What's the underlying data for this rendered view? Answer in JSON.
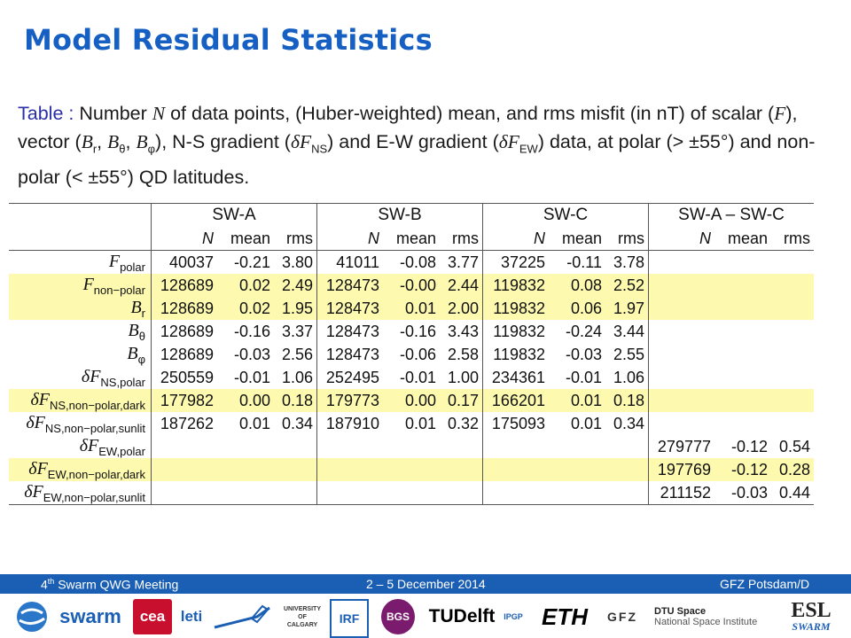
{
  "title": "Model Residual Statistics",
  "caption": {
    "lead": "Table :",
    "t1": " Number ",
    "N": "N",
    "t2": " of data points, (Huber-weighted) mean, and rms misfit (in nT) of scalar (",
    "F": "F",
    "t3": "), vector (",
    "Br": "B",
    "Br_sub": "r",
    "Bt": "B",
    "Bt_sub": "θ",
    "Bp": "B",
    "Bp_sub": "φ",
    "t4": "), N-S gradient (",
    "dFNS": "δF",
    "dFNS_sub": "NS",
    "t5": ") and E-W gradient (",
    "dFEW": "δF",
    "dFEW_sub": "EW",
    "t6": ") data, at polar (> ±55°) and non-polar (< ±55°) QD latitudes."
  },
  "table": {
    "groups": [
      "SW-A",
      "SW-B",
      "SW-C",
      "SW-A – SW-C"
    ],
    "subheaders": [
      "N",
      "mean",
      "rms"
    ],
    "rows": [
      {
        "label": "F",
        "sub": "polar",
        "hl": false,
        "cells": [
          [
            "40037",
            "-0.21",
            "3.80"
          ],
          [
            "41011",
            "-0.08",
            "3.77"
          ],
          [
            "37225",
            "-0.11",
            "3.78"
          ],
          [
            "",
            "",
            ""
          ]
        ]
      },
      {
        "label": "F",
        "sub": "non−polar",
        "hl": true,
        "cells": [
          [
            "128689",
            "0.02",
            "2.49"
          ],
          [
            "128473",
            "-0.00",
            "2.44"
          ],
          [
            "119832",
            "0.08",
            "2.52"
          ],
          [
            "",
            "",
            ""
          ]
        ]
      },
      {
        "label": "B",
        "sub": "r",
        "hl": true,
        "cells": [
          [
            "128689",
            "0.02",
            "1.95"
          ],
          [
            "128473",
            "0.01",
            "2.00"
          ],
          [
            "119832",
            "0.06",
            "1.97"
          ],
          [
            "",
            "",
            ""
          ]
        ]
      },
      {
        "label": "B",
        "sub": "θ",
        "hl": false,
        "cells": [
          [
            "128689",
            "-0.16",
            "3.37"
          ],
          [
            "128473",
            "-0.16",
            "3.43"
          ],
          [
            "119832",
            "-0.24",
            "3.44"
          ],
          [
            "",
            "",
            ""
          ]
        ]
      },
      {
        "label": "B",
        "sub": "φ",
        "hl": false,
        "cells": [
          [
            "128689",
            "-0.03",
            "2.56"
          ],
          [
            "128473",
            "-0.06",
            "2.58"
          ],
          [
            "119832",
            "-0.03",
            "2.55"
          ],
          [
            "",
            "",
            ""
          ]
        ]
      },
      {
        "label": "δF",
        "sub": "NS,polar",
        "hl": false,
        "cells": [
          [
            "250559",
            "-0.01",
            "1.06"
          ],
          [
            "252495",
            "-0.01",
            "1.00"
          ],
          [
            "234361",
            "-0.01",
            "1.06"
          ],
          [
            "",
            "",
            ""
          ]
        ]
      },
      {
        "label": "δF",
        "sub": "NS,non−polar,dark",
        "hl": true,
        "cells": [
          [
            "177982",
            "0.00",
            "0.18"
          ],
          [
            "179773",
            "0.00",
            "0.17"
          ],
          [
            "166201",
            "0.01",
            "0.18"
          ],
          [
            "",
            "",
            ""
          ]
        ]
      },
      {
        "label": "δF",
        "sub": "NS,non−polar,sunlit",
        "hl": false,
        "cells": [
          [
            "187262",
            "0.01",
            "0.34"
          ],
          [
            "187910",
            "0.01",
            "0.32"
          ],
          [
            "175093",
            "0.01",
            "0.34"
          ],
          [
            "",
            "",
            ""
          ]
        ]
      },
      {
        "label": "δF",
        "sub": "EW,polar",
        "hl": false,
        "cells": [
          [
            "",
            "",
            ""
          ],
          [
            "",
            "",
            ""
          ],
          [
            "",
            "",
            ""
          ],
          [
            "279777",
            "-0.12",
            "0.54"
          ]
        ]
      },
      {
        "label": "δF",
        "sub": "EW,non−polar,dark",
        "hl": true,
        "cells": [
          [
            "",
            "",
            ""
          ],
          [
            "",
            "",
            ""
          ],
          [
            "",
            "",
            ""
          ],
          [
            "197769",
            "-0.12",
            "0.28"
          ]
        ]
      },
      {
        "label": "δF",
        "sub": "EW,non−polar,sunlit",
        "hl": false,
        "cells": [
          [
            "",
            "",
            ""
          ],
          [
            "",
            "",
            ""
          ],
          [
            "",
            "",
            ""
          ],
          [
            "211152",
            "-0.03",
            "0.44"
          ]
        ]
      }
    ]
  },
  "footer": {
    "meeting_num": "4",
    "meeting_sup": "th",
    "meeting_rest": " Swarm QWG Meeting",
    "dates": "2 – 5 December 2014",
    "location": "GFZ Potsdam/D"
  },
  "logos": [
    {
      "name": "swarm",
      "text": "swarm",
      "color": "#1b5fb4"
    },
    {
      "name": "cea",
      "text": "cea",
      "color": "#c8102e"
    },
    {
      "name": "leti",
      "text": "leti",
      "color": "#1b5fb4"
    },
    {
      "name": "calgary",
      "text": "UNIVERSITY OF CALGARY",
      "color": "#333333"
    },
    {
      "name": "irf",
      "text": "IRF",
      "color": "#1b5fb4"
    },
    {
      "name": "bgs",
      "text": "BGS",
      "color": "#7a1b6e"
    },
    {
      "name": "tudelft",
      "text": "TUDelft",
      "color": "#000000"
    },
    {
      "name": "ipgp",
      "text": "IPGP",
      "color": "#1b5fb4"
    },
    {
      "name": "eth",
      "text": "ETH",
      "color": "#000000"
    },
    {
      "name": "gfz",
      "text": "GFZ",
      "color": "#333333"
    },
    {
      "name": "dtu",
      "text": "DTU Space",
      "sub": "National Space Institute",
      "color": "#222222"
    },
    {
      "name": "esl",
      "text": "ESL",
      "sub": "SWARM",
      "color": "#1b5fb4"
    }
  ]
}
